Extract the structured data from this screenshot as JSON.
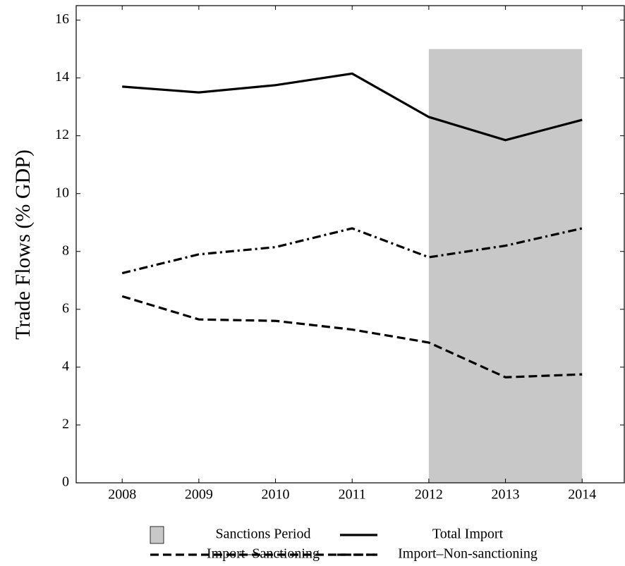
{
  "chart_data": {
    "type": "line",
    "y_label": "Trade Flows (% GDP)",
    "x": [
      2008,
      2009,
      2010,
      2011,
      2012,
      2013,
      2014
    ],
    "xlim": [
      2007.4,
      2014.55
    ],
    "xticks": [
      2008,
      2009,
      2010,
      2011,
      2012,
      2013,
      2014
    ],
    "ylim": [
      0,
      16.5
    ],
    "yticks": [
      0,
      2,
      4,
      6,
      8,
      10,
      12,
      14,
      16
    ],
    "shaded": {
      "name": "Sanctions Period",
      "color": "#c8c8c8",
      "x": [
        2012,
        2014
      ],
      "value": 15
    },
    "series": [
      {
        "name": "Total Import",
        "color": "#000000",
        "dash": "solid",
        "values": [
          13.7,
          13.5,
          13.75,
          14.15,
          12.65,
          11.85,
          12.55
        ]
      },
      {
        "name": "Import–Sanctioning",
        "color": "#000000",
        "dash": "dashed",
        "values": [
          6.45,
          5.65,
          5.6,
          5.3,
          4.85,
          3.65,
          3.75
        ]
      },
      {
        "name": "Import–Non-sanctioning",
        "color": "#000000",
        "dash": "dashdot",
        "values": [
          7.25,
          7.9,
          8.15,
          8.8,
          7.8,
          8.2,
          8.8
        ]
      }
    ]
  }
}
